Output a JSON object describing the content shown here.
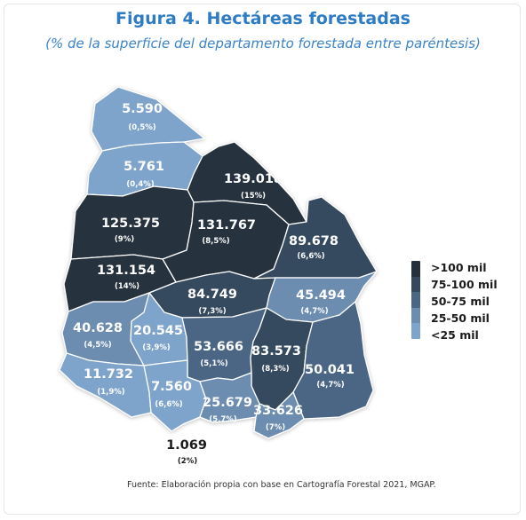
{
  "title": "Figura 4. Hectáreas forestadas",
  "subtitle": "(% de la superficie del departamento forestada entre paréntesis)",
  "source": "Fuente: Elaboración propia con base en Cartografía Forestal 2021, MGAP.",
  "colors": {
    "title": "#2e7cc4",
    "class_gt100": "#26303d",
    "class_75_100": "#35485e",
    "class_50_75": "#4b6685",
    "class_25_50": "#6c8cb0",
    "class_lt25": "#7fa4cc",
    "border": "#ffffff"
  },
  "legend": [
    {
      "label": ">100 mil",
      "class": "class_gt100"
    },
    {
      "label": "75-100 mil",
      "class": "class_75_100"
    },
    {
      "label": "50-75 mil",
      "class": "class_50_75"
    },
    {
      "label": "25-50 mil",
      "class": "class_25_50"
    },
    {
      "label": "<25 mil",
      "class": "class_lt25"
    }
  ],
  "departments": [
    {
      "id": "artigas",
      "value": "5.590",
      "pct": "(0,5%)",
      "class": "class_lt25"
    },
    {
      "id": "salto",
      "value": "5.761",
      "pct": "(0,4%)",
      "class": "class_lt25"
    },
    {
      "id": "rivera",
      "value": "139.018",
      "pct": "(15%)",
      "class": "class_gt100"
    },
    {
      "id": "paysandu",
      "value": "125.375",
      "pct": "(9%)",
      "class": "class_gt100"
    },
    {
      "id": "tacuarembo",
      "value": "131.767",
      "pct": "(8,5%)",
      "class": "class_gt100"
    },
    {
      "id": "cerro-largo",
      "value": "89.678",
      "pct": "(6,6%)",
      "class": "class_75_100"
    },
    {
      "id": "rio-negro",
      "value": "131.154",
      "pct": "(14%)",
      "class": "class_gt100"
    },
    {
      "id": "durazno",
      "value": "84.749",
      "pct": "(7,3%)",
      "class": "class_75_100"
    },
    {
      "id": "treinta-y-tres",
      "value": "45.494",
      "pct": "(4,7%)",
      "class": "class_25_50"
    },
    {
      "id": "soriano",
      "value": "40.628",
      "pct": "(4,5%)",
      "class": "class_25_50"
    },
    {
      "id": "flores",
      "value": "20.545",
      "pct": "(3,9%)",
      "class": "class_lt25"
    },
    {
      "id": "florida",
      "value": "53.666",
      "pct": "(5,1%)",
      "class": "class_50_75"
    },
    {
      "id": "lavalleja",
      "value": "83.573",
      "pct": "(8,3%)",
      "class": "class_75_100"
    },
    {
      "id": "rocha",
      "value": "50.041",
      "pct": "(4,7%)",
      "class": "class_50_75"
    },
    {
      "id": "colonia",
      "value": "11.732",
      "pct": "(1,9%)",
      "class": "class_lt25"
    },
    {
      "id": "san-jose",
      "value": "7.560",
      "pct": "(6,6%)",
      "class": "class_lt25"
    },
    {
      "id": "canelones",
      "value": "25.679",
      "pct": "(5,7%)",
      "class": "class_25_50"
    },
    {
      "id": "maldonado",
      "value": "33.626",
      "pct": "(7%)",
      "class": "class_25_50"
    },
    {
      "id": "montevideo",
      "value": "1.069",
      "pct": "(2%)",
      "class": "class_lt25"
    }
  ]
}
